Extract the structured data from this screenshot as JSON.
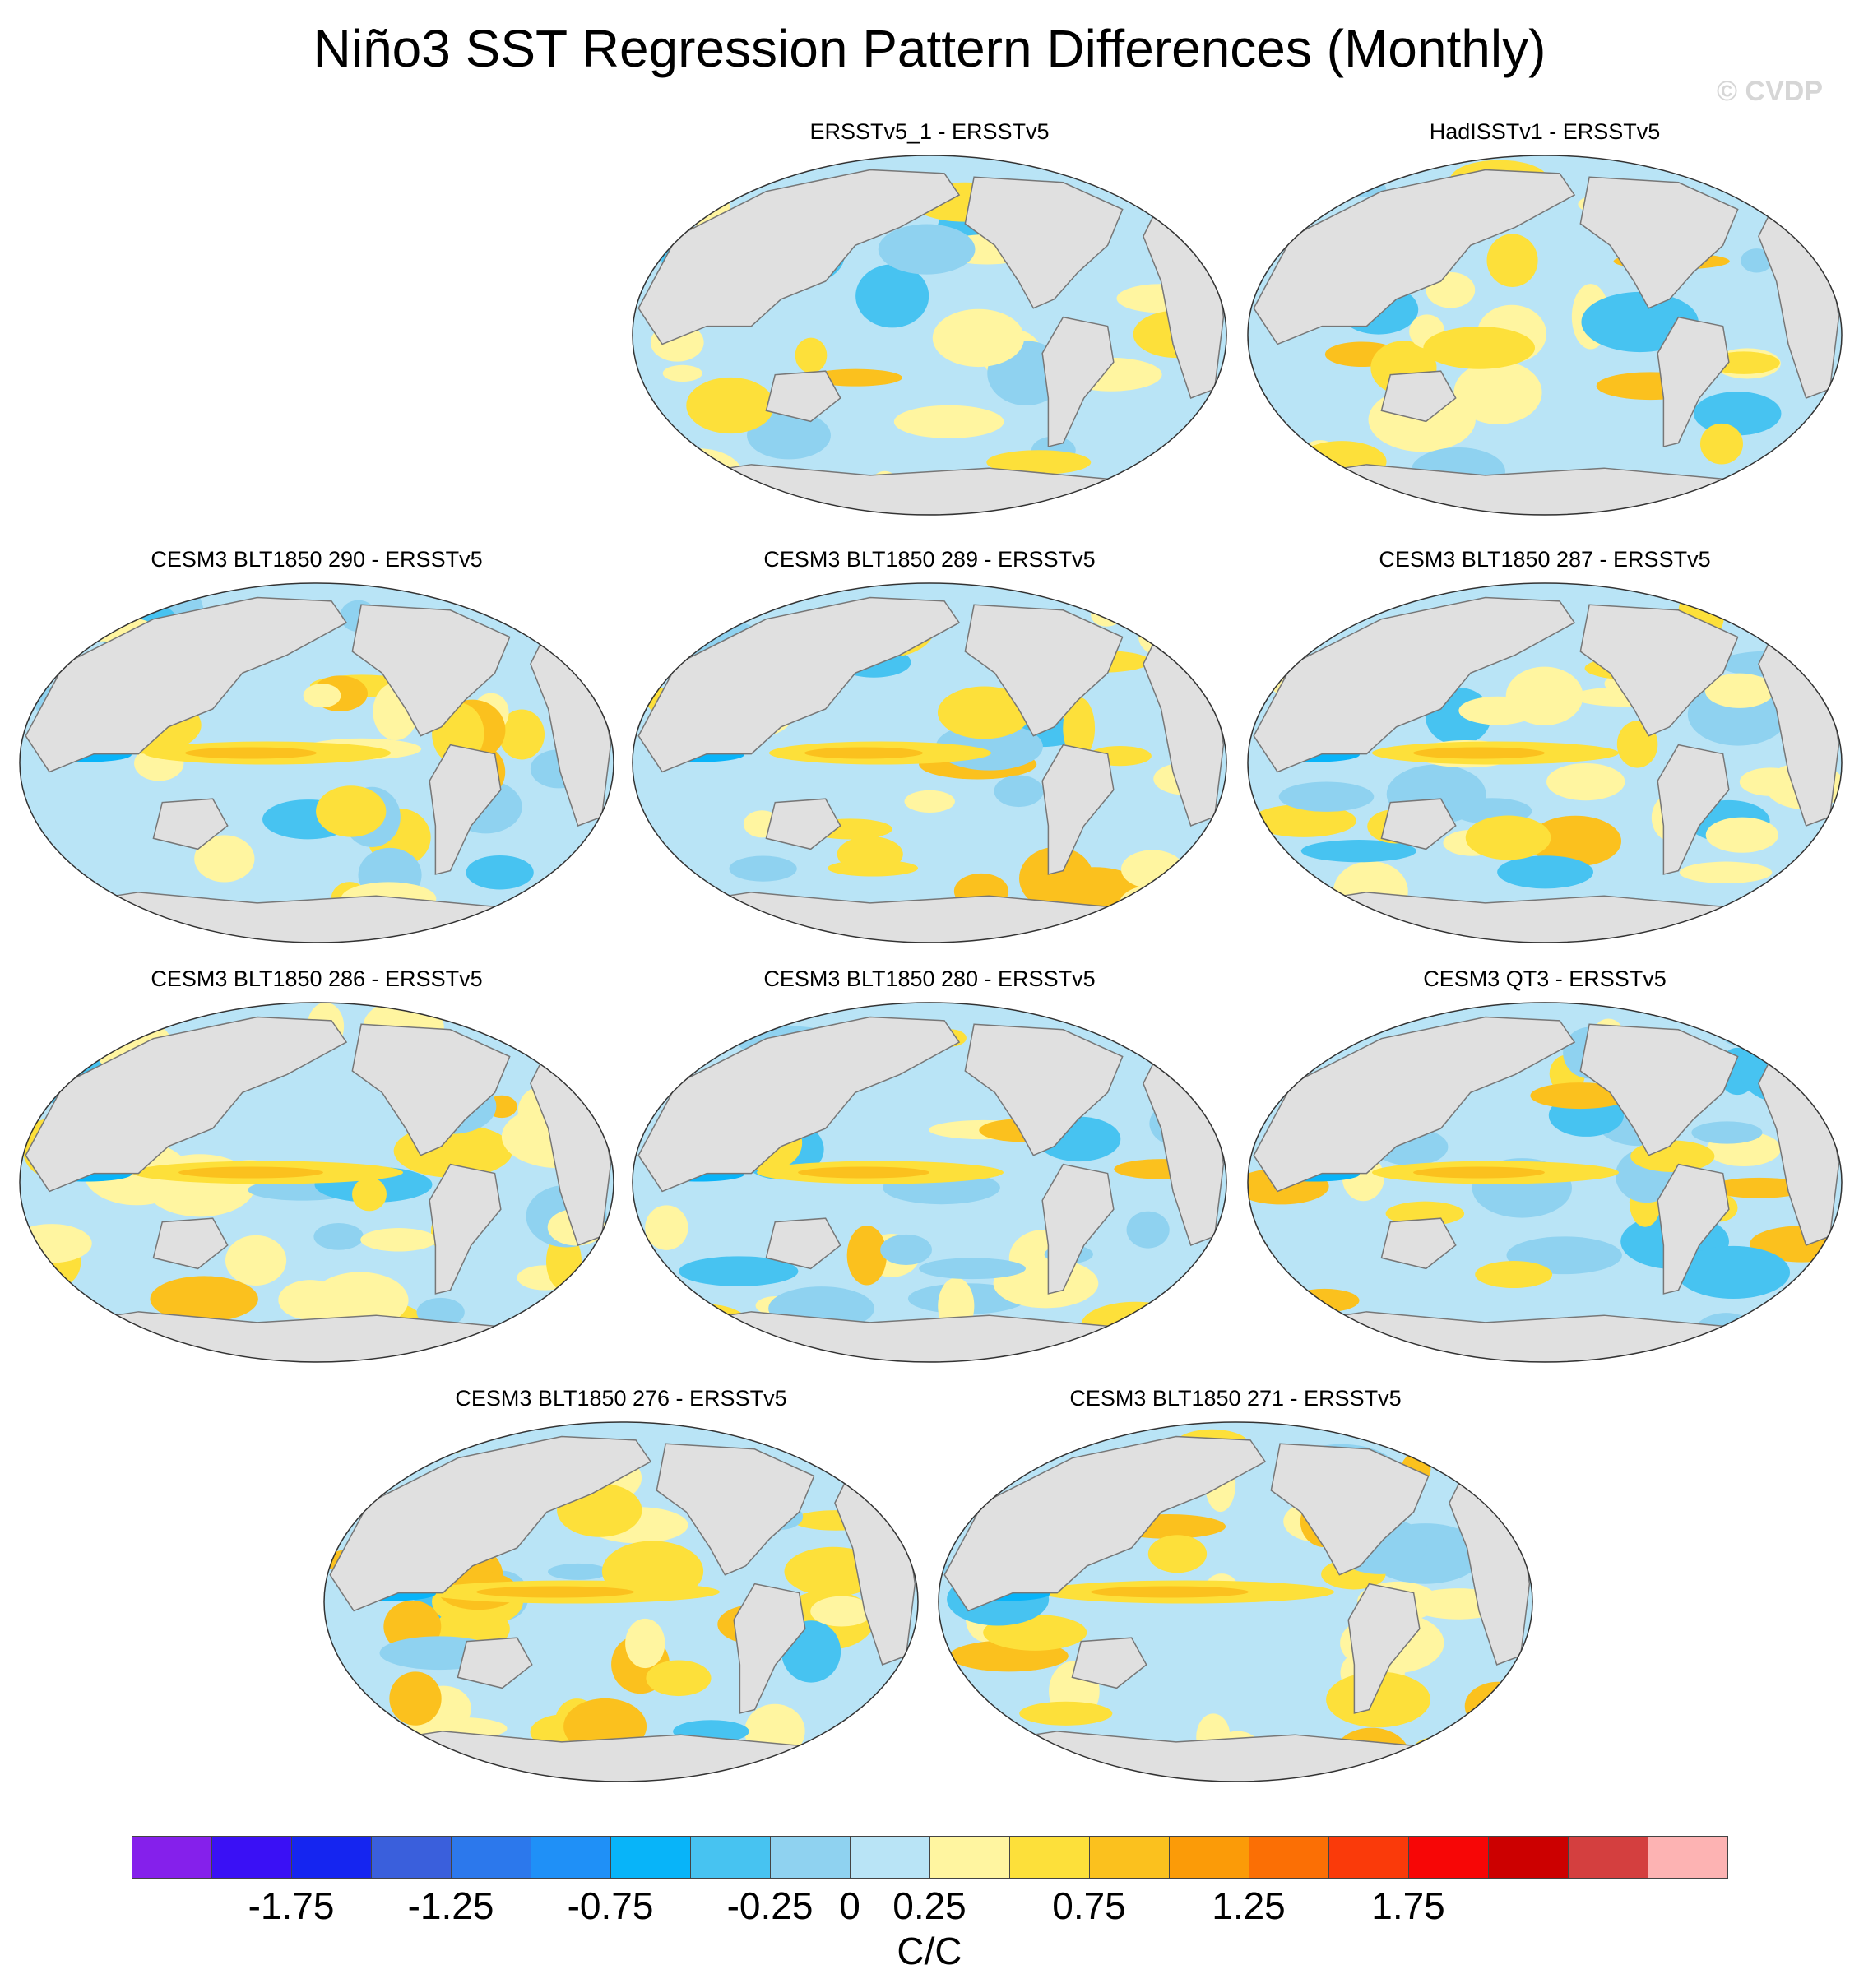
{
  "title": "Niño3 SST Regression Pattern Differences (Monthly)",
  "copyright": "© CVDP",
  "panels": [
    {
      "label": "ERSSTv5_1 - ERSSTv5",
      "seed": 3,
      "tropical_band": 0.1
    },
    {
      "label": "HadISSTv1 - ERSSTv5",
      "seed": 7,
      "tropical_band": 0.2
    },
    {
      "label": "CESM3 BLT1850 290 - ERSSTv5",
      "seed": 11,
      "tropical_band": 1.0
    },
    {
      "label": "CESM3 BLT1850 289 - ERSSTv5",
      "seed": 17,
      "tropical_band": 0.9
    },
    {
      "label": "CESM3 BLT1850 287 - ERSSTv5",
      "seed": 23,
      "tropical_band": 1.0
    },
    {
      "label": "CESM3 BLT1850 286 - ERSSTv5",
      "seed": 29,
      "tropical_band": 1.1
    },
    {
      "label": "CESM3 BLT1850 280 - ERSSTv5",
      "seed": 31,
      "tropical_band": 1.0
    },
    {
      "label": "CESM3 QT3 - ERSSTv5",
      "seed": 37,
      "tropical_band": 1.0
    },
    {
      "label": "CESM3 BLT1850 276 - ERSSTv5",
      "seed": 41,
      "tropical_band": 1.2
    },
    {
      "label": "CESM3 BLT1850 271 - ERSSTv5",
      "seed": 43,
      "tropical_band": 1.2
    }
  ],
  "colorbar": {
    "colors": [
      "#8520eb",
      "#3a10f5",
      "#1525f0",
      "#3a5fdc",
      "#2c78ec",
      "#1f90f7",
      "#08b4f9",
      "#47c3f1",
      "#8fd2f0",
      "#b9e4f6",
      "#fff5a0",
      "#fde03a",
      "#fbc11e",
      "#fb9b08",
      "#fb6f05",
      "#fa3a0a",
      "#f70606",
      "#cc0000",
      "#d43f3f",
      "#fdb3b3"
    ],
    "tick_values": [
      -2.0,
      -1.75,
      -1.5,
      -1.25,
      -1.0,
      -0.75,
      -0.5,
      -0.25,
      0,
      0.25,
      0.5,
      0.75,
      1.0,
      1.25,
      1.5,
      1.75,
      2.0
    ],
    "labels": [
      "-1.75",
      "-1.25",
      "-0.75",
      "-0.25",
      "0",
      "0.25",
      "0.75",
      "1.25",
      "1.75"
    ],
    "units": "C/C"
  }
}
